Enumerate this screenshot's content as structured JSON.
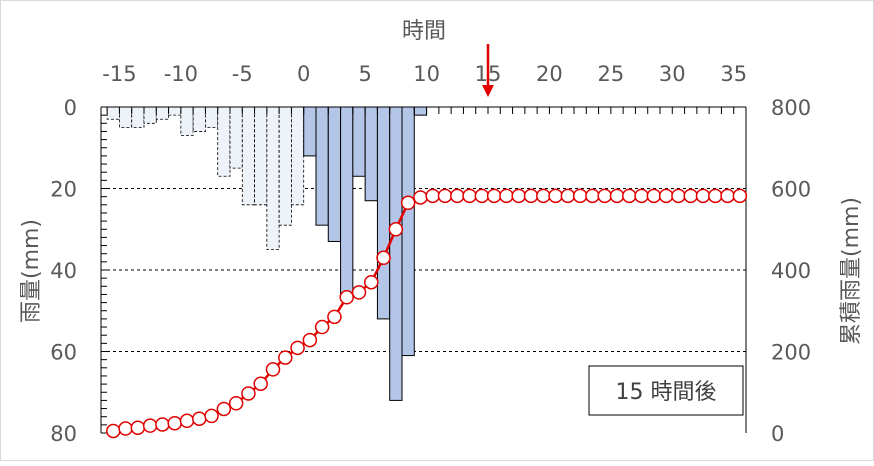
{
  "chart_data": {
    "type": "bar+line",
    "title": "",
    "xlabel": "時間",
    "ylabel_left": "雨量(mm)",
    "ylabel_right": "累積雨量(mm)",
    "x_ticks": [
      -15,
      -10,
      -5,
      0,
      5,
      10,
      15,
      20,
      25,
      30,
      35
    ],
    "x_range": [
      -16.5,
      36
    ],
    "ylim_left": [
      0,
      80
    ],
    "ylim_right": [
      0,
      800
    ],
    "y_ticks_left": [
      0,
      20,
      40,
      60,
      80
    ],
    "y_ticks_right": [
      0,
      200,
      400,
      600,
      800
    ],
    "left_axis_inverted": true,
    "gridlines_left": [
      20,
      40,
      60
    ],
    "annotation": "15 時間後",
    "marker_hour": 15,
    "colors": {
      "past_bar_fill": "#eef2f9",
      "past_bar_edge": "#000000",
      "actual_bar_fill": "#b4c6e7",
      "actual_bar_edge": "#000000",
      "cumulative_line": "#e00000",
      "marker_arrow": "#e00000",
      "axis_text": "#595959"
    },
    "series_past_rain": {
      "name": "past hourly rainfall (mm)",
      "hours": [
        -16,
        -15,
        -14,
        -13,
        -12,
        -11,
        -10,
        -9,
        -8,
        -7,
        -6,
        -5,
        -4,
        -3,
        -2,
        -1
      ],
      "values": [
        3,
        5,
        5,
        4,
        3,
        2,
        7,
        6,
        5,
        17,
        15,
        24,
        24,
        35,
        29,
        24
      ]
    },
    "series_rain": {
      "name": "hourly rainfall (mm)",
      "hours": [
        0,
        1,
        2,
        3,
        4,
        5,
        6,
        7,
        8,
        9
      ],
      "values": [
        12,
        29,
        33,
        47,
        17,
        23,
        52,
        72,
        61,
        2
      ]
    },
    "series_cumulative": {
      "name": "cumulative rainfall (mm)",
      "hours": [
        -16,
        -15,
        -14,
        -13,
        -12,
        -11,
        -10,
        -9,
        -8,
        -7,
        -6,
        -5,
        -4,
        -3,
        -2,
        -1,
        0,
        1,
        2,
        3,
        4,
        5,
        6,
        7,
        8,
        9,
        10,
        11,
        12,
        13,
        14,
        15,
        16,
        17,
        18,
        19,
        20,
        21,
        22,
        23,
        24,
        25,
        26,
        27,
        28,
        29,
        30,
        31,
        32,
        33,
        34,
        35
      ],
      "values": [
        5,
        11,
        13,
        18,
        21,
        24,
        30,
        35,
        42,
        59,
        73,
        97,
        121,
        156,
        185,
        209,
        228,
        260,
        285,
        333,
        345,
        370,
        430,
        500,
        565,
        578,
        582,
        582,
        582,
        582,
        582,
        582,
        582,
        582,
        582,
        582,
        582,
        582,
        582,
        582,
        582,
        582,
        582,
        582,
        582,
        582,
        582,
        582,
        582,
        582,
        582,
        582
      ]
    }
  }
}
